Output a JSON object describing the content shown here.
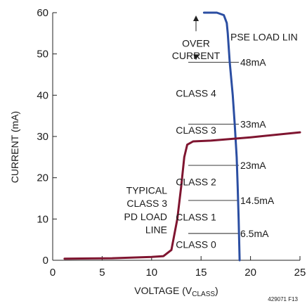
{
  "chart_data": {
    "type": "line",
    "xlabel_main": "VOLTAGE (V",
    "xlabel_sub": "CLASS",
    "xlabel_close": ")",
    "ylabel": "CURRENT (mA)",
    "xlim": [
      0,
      25
    ],
    "ylim": [
      0,
      60
    ],
    "x_ticks": [
      0,
      5,
      10,
      15,
      20,
      25
    ],
    "y_ticks": [
      0,
      10,
      20,
      30,
      40,
      50,
      60
    ],
    "grid": false,
    "series": [
      {
        "name": "PSE LOAD LIN",
        "color": "#2b4ea2",
        "points": [
          [
            15.3,
            60
          ],
          [
            16.6,
            60
          ],
          [
            17.3,
            59.4
          ],
          [
            17.6,
            57.5
          ],
          [
            17.7,
            55
          ],
          [
            17.9,
            48
          ],
          [
            18.2,
            40
          ],
          [
            18.4,
            33
          ],
          [
            18.6,
            25
          ],
          [
            18.7,
            18
          ],
          [
            18.8,
            10
          ],
          [
            18.9,
            0
          ]
        ]
      },
      {
        "name": "TYPICAL CLASS 3 PD LOAD LINE",
        "color": "#7f1530",
        "points": [
          [
            1.2,
            0.4
          ],
          [
            6,
            0.5
          ],
          [
            10,
            0.8
          ],
          [
            11.2,
            1
          ],
          [
            12,
            2.5
          ],
          [
            12.6,
            10
          ],
          [
            13,
            18
          ],
          [
            13.3,
            25
          ],
          [
            13.6,
            28
          ],
          [
            14.2,
            28.8
          ],
          [
            16,
            29
          ],
          [
            20,
            29.8
          ],
          [
            25,
            31
          ]
        ]
      }
    ],
    "class_thresholds": [
      {
        "label": "48mA",
        "value": 48
      },
      {
        "label": "33mA",
        "value": 33
      },
      {
        "label": "23mA",
        "value": 23
      },
      {
        "label": "14.5mA",
        "value": 14.5
      },
      {
        "label": "6.5mA",
        "value": 6.5
      }
    ],
    "class_labels": [
      {
        "label": "CLASS 4",
        "center": 40.5
      },
      {
        "label": "CLASS 3",
        "center": 31.5
      },
      {
        "label": "CLASS 2",
        "center": 19
      },
      {
        "label": "CLASS 1",
        "center": 10.5
      },
      {
        "label": "CLASS 0",
        "center": 3.8
      }
    ],
    "over_current": {
      "lines": [
        "OVER",
        "CURRENT"
      ],
      "span": [
        48,
        60
      ]
    },
    "series_labels": {
      "pse": "PSE LOAD LIN",
      "pd": [
        "TYPICAL",
        "CLASS 3",
        "PD LOAD",
        "LINE"
      ]
    },
    "figure_id": "429071 F13"
  }
}
